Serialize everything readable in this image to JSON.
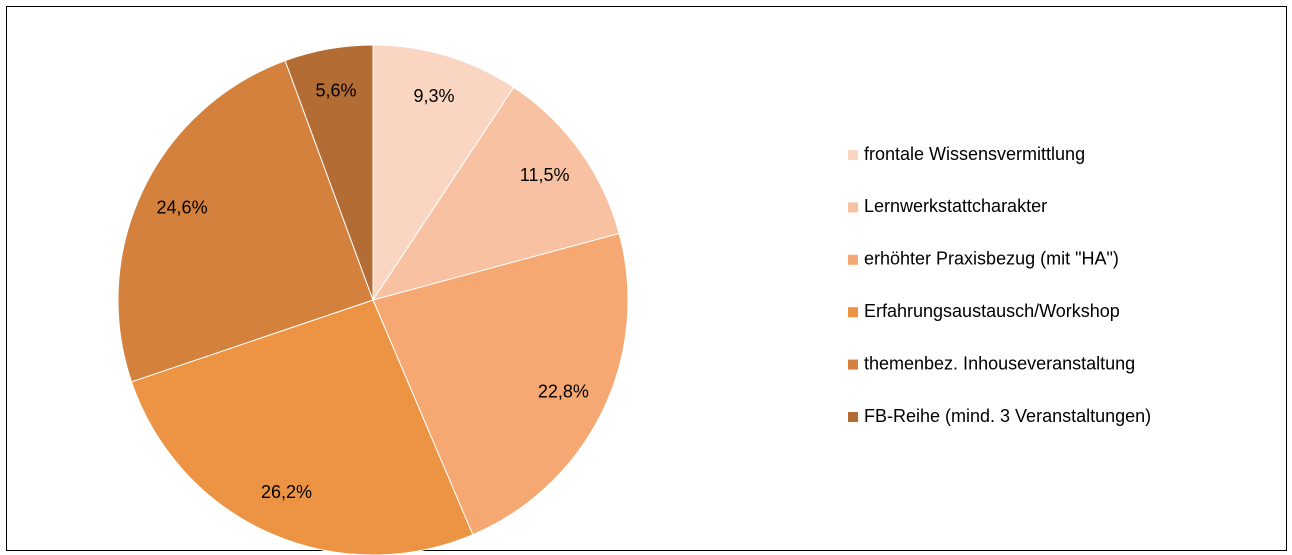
{
  "chart_data": {
    "type": "pie",
    "categories": [
      "frontale Wissensvermittlung",
      "Lernwerkstattcharakter",
      "erhöhter Praxisbezug (mit \"HA\")",
      "Erfahrungsaustausch/Workshop",
      "themenbez. Inhouseveranstaltung",
      "FB-Reihe (mind. 3 Veranstaltungen)"
    ],
    "values": [
      9.3,
      11.5,
      22.8,
      26.2,
      24.6,
      5.6
    ],
    "value_labels": [
      "9,3%",
      "11,5%",
      "22,8%",
      "26,2%",
      "24,6%",
      "5,6%"
    ],
    "colors": [
      "#f9d5c2",
      "#f8c2a2",
      "#f6a872",
      "#ec9444",
      "#d3813c",
      "#b36c33"
    ],
    "legend": "right"
  }
}
